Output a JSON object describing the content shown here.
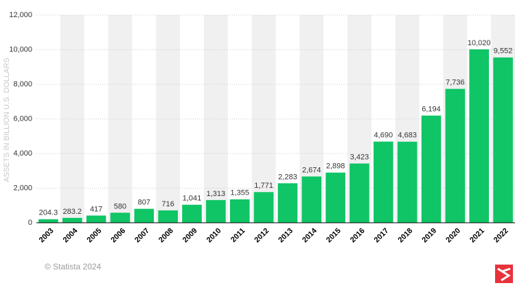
{
  "chart_data": {
    "type": "bar",
    "y_label": "ASSETS IN BILLION U.S. DOLLARS",
    "source": "© Statista 2024",
    "categories": [
      "2003",
      "2004",
      "2005",
      "2006",
      "2007",
      "2008",
      "2009",
      "2010",
      "2011",
      "2012",
      "2013",
      "2014",
      "2015",
      "2016",
      "2017",
      "2018",
      "2019",
      "2020",
      "2021",
      "2022"
    ],
    "values": [
      204.3,
      283.2,
      417,
      580,
      807,
      716,
      1041,
      1313,
      1355,
      1771,
      2283,
      2674,
      2898,
      3423,
      4690,
      4683,
      6194,
      7736,
      10020,
      9552
    ],
    "value_labels": [
      "204.3",
      "283.2",
      "417",
      "580",
      "807",
      "716",
      "1,041",
      "1,313",
      "1,355",
      "1,771",
      "2,283",
      "2,674",
      "2,898",
      "3,423",
      "4,690",
      "4,683",
      "6,194",
      "7,736",
      "10,020",
      "9,552"
    ],
    "color": "#0fc565",
    "ylim": [
      0,
      12000
    ],
    "yticks": [
      0,
      {
        "value": 2000,
        "label": "2,000"
      },
      {
        "value": 4000,
        "label": "4,000"
      },
      {
        "value": 6000,
        "label": "6,000"
      },
      {
        "value": 8000,
        "label": "8,000"
      },
      {
        "value": 10000,
        "label": "10,000"
      },
      {
        "value": 12000,
        "label": "12,000"
      }
    ],
    "grid": true
  }
}
